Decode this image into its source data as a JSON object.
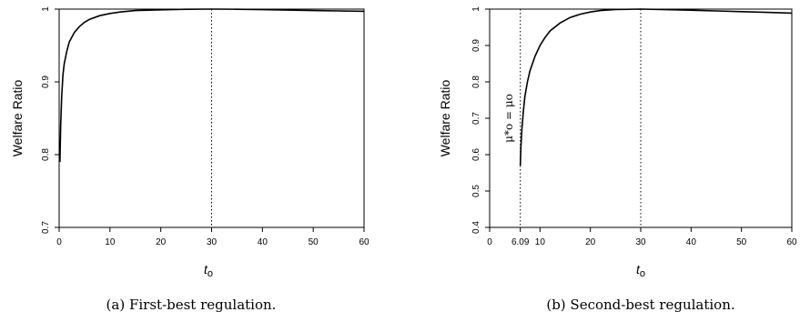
{
  "chart_data": [
    {
      "type": "line",
      "title": "",
      "xlabel": "t",
      "xlabel_sub": "o",
      "ylabel": "Welfare Ratio",
      "xlim": [
        0,
        60
      ],
      "ylim": [
        0.7,
        1.0
      ],
      "xticks": [
        0,
        10,
        20,
        30,
        40,
        50,
        60
      ],
      "yticks": [
        0.7,
        0.8,
        0.9,
        1.0
      ],
      "xtick_labels": [
        "0",
        "10",
        "20",
        "30",
        "40",
        "50",
        "60"
      ],
      "ytick_labels": [
        "0.7",
        "0.8",
        "0.9",
        "1"
      ],
      "vlines": [
        {
          "x": 30,
          "label": ""
        }
      ],
      "annotation": "",
      "x": [
        0.15,
        0.3,
        0.5,
        0.75,
        1,
        1.5,
        2,
        3,
        4,
        5,
        6,
        8,
        10,
        12,
        15,
        20,
        25,
        30,
        35,
        40,
        45,
        50,
        55,
        60
      ],
      "y": [
        0.79,
        0.84,
        0.88,
        0.91,
        0.925,
        0.942,
        0.955,
        0.968,
        0.976,
        0.982,
        0.986,
        0.991,
        0.994,
        0.996,
        0.998,
        0.999,
        0.9998,
        1.0,
        0.9998,
        0.9993,
        0.9986,
        0.998,
        0.9975,
        0.997
      ],
      "caption": "(a) First-best regulation."
    },
    {
      "type": "line",
      "title": "",
      "xlabel": "t",
      "xlabel_sub": "o",
      "ylabel": "Welfare Ratio",
      "xlim": [
        0,
        60
      ],
      "ylim": [
        0.4,
        1.0
      ],
      "xticks": [
        0,
        6.09,
        10,
        20,
        30,
        40,
        50,
        60
      ],
      "yticks": [
        0.4,
        0.5,
        0.6,
        0.7,
        0.8,
        0.9,
        1.0
      ],
      "xtick_labels": [
        "0",
        "6.09",
        "10",
        "20",
        "30",
        "40",
        "50",
        "60"
      ],
      "ytick_labels": [
        "0.4",
        "0.5",
        "0.6",
        "0.7",
        "0.8",
        "0.9",
        "1"
      ],
      "vlines": [
        {
          "x": 6.09
        },
        {
          "x": 30
        }
      ],
      "annotation": "μ*o = μo",
      "x": [
        6.09,
        6.2,
        6.4,
        6.7,
        7,
        7.5,
        8,
        9,
        10,
        11,
        12,
        14,
        16,
        18,
        20,
        22,
        25,
        30,
        35,
        40,
        45,
        50,
        55,
        60
      ],
      "y": [
        0.57,
        0.62,
        0.67,
        0.72,
        0.76,
        0.8,
        0.83,
        0.87,
        0.9,
        0.922,
        0.94,
        0.962,
        0.977,
        0.986,
        0.992,
        0.996,
        0.999,
        1.0,
        0.9985,
        0.997,
        0.995,
        0.993,
        0.991,
        0.989
      ],
      "caption": "(b) Second-best regulation."
    }
  ]
}
